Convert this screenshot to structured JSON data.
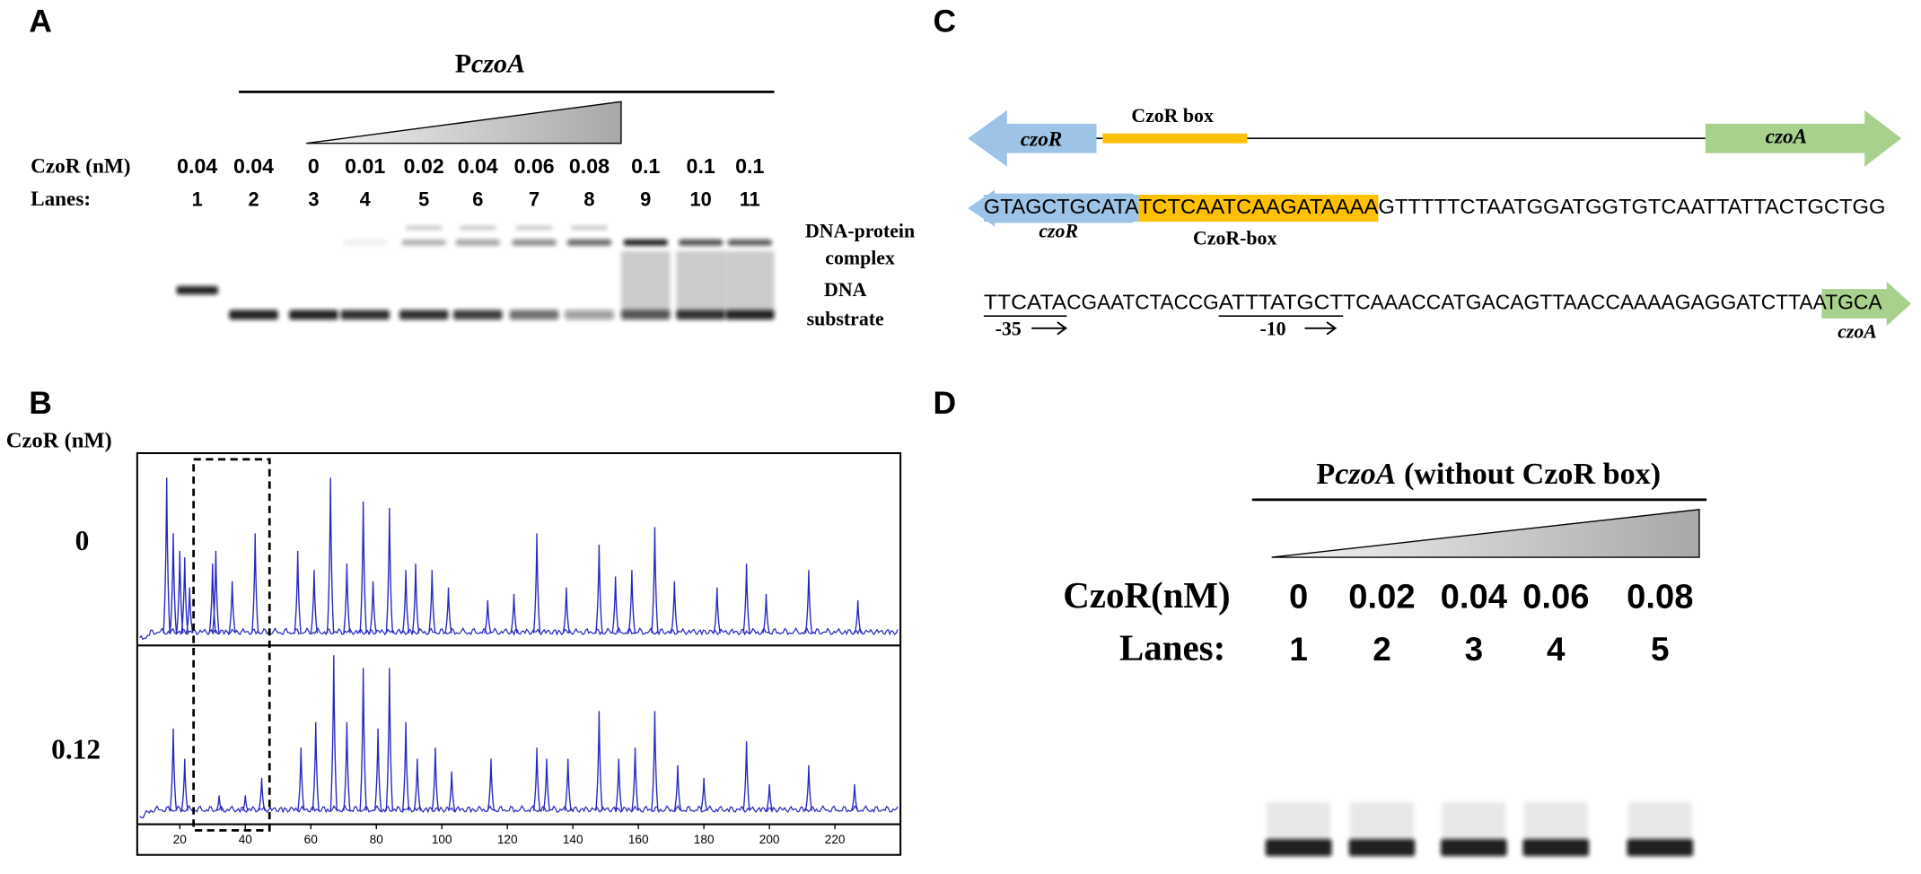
{
  "panels": {
    "A": {
      "letter": "A",
      "construct": {
        "prefix": "P",
        "gene": "czoA"
      },
      "conc_label": "CzoR (nM)",
      "concentrations": [
        0.04,
        0.04,
        0,
        0.01,
        0.02,
        0.04,
        0.06,
        0.08,
        0.1,
        0.1,
        0.1
      ],
      "lanes_label": "Lanes:",
      "lanes": [
        1,
        2,
        3,
        4,
        5,
        6,
        7,
        8,
        9,
        10,
        11
      ],
      "complex_label": [
        "DNA-protein",
        "complex"
      ],
      "substrate_label": [
        "DNA",
        "substrate"
      ]
    },
    "B": {
      "letter": "B",
      "conc_label": "CzoR (nM)",
      "xlim": [
        7,
        240
      ],
      "xticks": [
        20,
        40,
        60,
        80,
        100,
        120,
        140,
        160,
        180,
        200,
        220
      ],
      "traces": [
        {
          "concentration": 0,
          "peaks": [
            [
              16,
              100
            ],
            [
              18,
              65
            ],
            [
              20,
              54
            ],
            [
              21.5,
              50
            ],
            [
              23,
              31
            ],
            [
              30,
              46
            ],
            [
              31,
              54
            ],
            [
              36,
              35
            ],
            [
              43,
              65
            ],
            [
              56,
              54
            ],
            [
              61,
              42
            ],
            [
              66,
              100
            ],
            [
              71,
              46
            ],
            [
              76,
              85
            ],
            [
              79,
              35
            ],
            [
              84,
              81
            ],
            [
              89,
              42
            ],
            [
              92,
              46
            ],
            [
              97,
              42
            ],
            [
              102,
              31
            ],
            [
              114,
              23
            ],
            [
              122,
              27
            ],
            [
              129,
              65
            ],
            [
              138,
              31
            ],
            [
              148,
              58
            ],
            [
              153,
              38
            ],
            [
              158,
              42
            ],
            [
              165,
              69
            ],
            [
              171,
              35
            ],
            [
              184,
              31
            ],
            [
              193,
              46
            ],
            [
              199,
              27
            ],
            [
              212,
              42
            ],
            [
              227,
              23
            ]
          ]
        },
        {
          "concentration": 0.12,
          "peaks": [
            [
              18,
              54
            ],
            [
              21.5,
              35
            ],
            [
              32,
              12
            ],
            [
              40,
              12
            ],
            [
              45,
              23
            ],
            [
              57,
              42
            ],
            [
              61.5,
              58
            ],
            [
              67,
              100
            ],
            [
              71,
              58
            ],
            [
              76,
              92
            ],
            [
              80.5,
              54
            ],
            [
              84,
              92
            ],
            [
              89,
              58
            ],
            [
              92.5,
              35
            ],
            [
              98,
              42
            ],
            [
              103,
              27
            ],
            [
              115,
              35
            ],
            [
              129,
              42
            ],
            [
              132,
              35
            ],
            [
              138.5,
              35
            ],
            [
              148,
              65
            ],
            [
              154,
              35
            ],
            [
              159,
              42
            ],
            [
              165,
              65
            ],
            [
              172,
              31
            ],
            [
              180,
              23
            ],
            [
              193,
              46
            ],
            [
              200,
              19
            ],
            [
              212,
              31
            ],
            [
              226,
              19
            ]
          ]
        }
      ]
    },
    "C": {
      "letter": "C",
      "genes": [
        "czoR",
        "czoA"
      ],
      "box_label": "CzoR box",
      "seq1": [
        "GTAGCTGCATA",
        "TCTCAATCAAGATAAAA",
        "GTTTTTCTAATGGATGGTGTCAATTATTACTGCTGG"
      ],
      "seq1_labels": [
        "czoR",
        "CzoR-box"
      ],
      "seq2": [
        "TTCATA",
        "CGAATCTACCG",
        "ATTTATGCT",
        "TCAAACCATGACAGTTAACCAAAAGAGGATCTTA",
        "ATGCA"
      ],
      "seq2_labels": [
        "-35",
        "-10",
        "czoA"
      ]
    },
    "D": {
      "letter": "D",
      "construct": {
        "prefix": "P",
        "gene": "czoA",
        "suffix": " (without CzoR box)"
      },
      "conc_label": "CzoR(nM)",
      "concentrations": [
        0,
        0.02,
        0.04,
        0.06,
        0.08
      ],
      "lanes_label": "Lanes:",
      "lanes": [
        1,
        2,
        3,
        4,
        5
      ]
    }
  }
}
